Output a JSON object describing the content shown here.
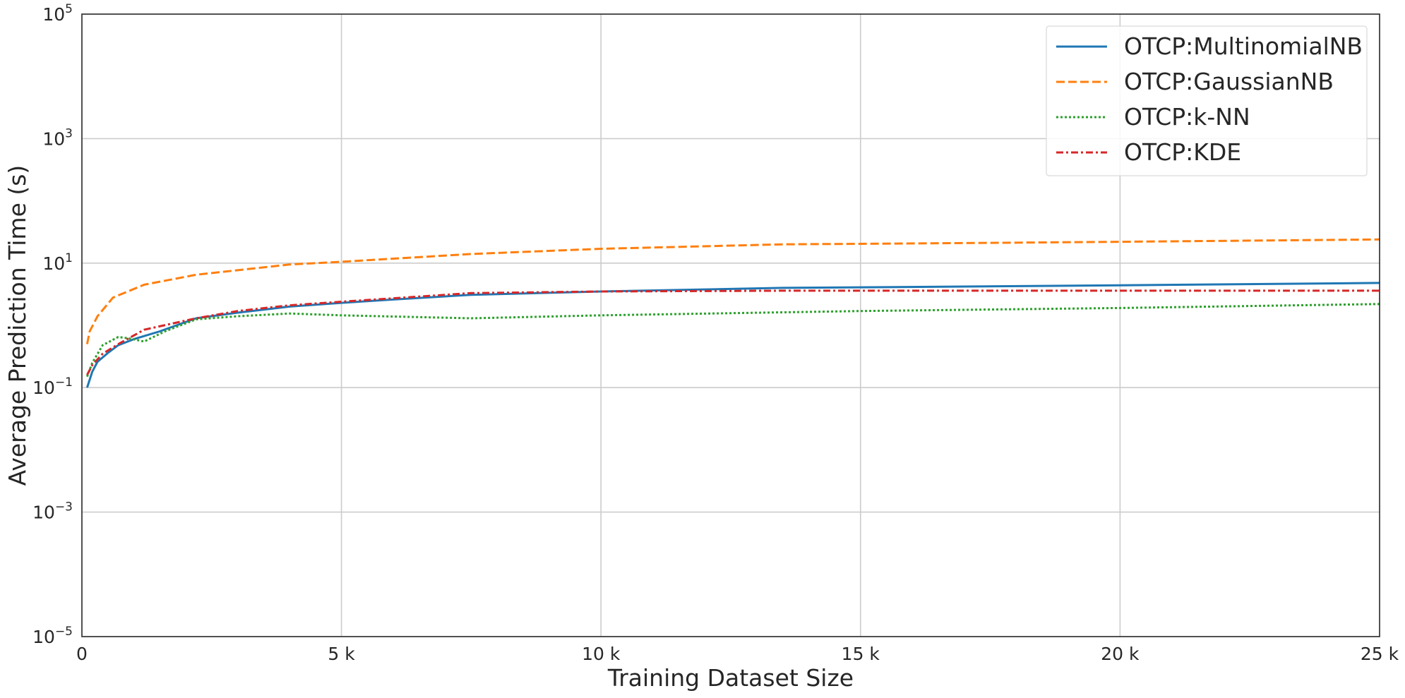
{
  "chart_data": {
    "type": "line",
    "title": "",
    "xlabel": "Training Dataset Size",
    "ylabel": "Average Prediction Time (s)",
    "xlim": [
      0,
      25000
    ],
    "ylim": [
      1e-05,
      100000
    ],
    "yscale": "log",
    "grid": true,
    "legend_position": "top-right",
    "x_ticks": [
      {
        "value": 0,
        "label": "0"
      },
      {
        "value": 5000,
        "label": "5 k"
      },
      {
        "value": 10000,
        "label": "10 k"
      },
      {
        "value": 15000,
        "label": "15 k"
      },
      {
        "value": 20000,
        "label": "20 k"
      },
      {
        "value": 25000,
        "label": "25 k"
      }
    ],
    "y_ticks": [
      {
        "value": 1e-05,
        "base": "10",
        "exp": "−5"
      },
      {
        "value": 0.001,
        "base": "10",
        "exp": "−3"
      },
      {
        "value": 0.1,
        "base": "10",
        "exp": "−1"
      },
      {
        "value": 10,
        "base": "10",
        "exp": "1"
      },
      {
        "value": 1000,
        "base": "10",
        "exp": "3"
      },
      {
        "value": 100000,
        "base": "10",
        "exp": "5"
      }
    ],
    "series": [
      {
        "name": "OTCP:MultinomialNB",
        "color": "#1f77b4",
        "dash": "solid",
        "x": [
          100,
          200,
          300,
          500,
          700,
          1000,
          1500,
          2200,
          3000,
          4000,
          5000,
          6000,
          7500,
          10000,
          13500,
          17000,
          20000,
          25000
        ],
        "y": [
          0.1,
          0.18,
          0.26,
          0.36,
          0.48,
          0.6,
          0.8,
          1.3,
          1.6,
          2.0,
          2.3,
          2.6,
          3.1,
          3.5,
          4.0,
          4.2,
          4.4,
          4.8
        ]
      },
      {
        "name": "OTCP:GaussianNB",
        "color": "#ff7f0e",
        "dash": "dashed",
        "x": [
          100,
          150,
          300,
          600,
          1200,
          2200,
          4000,
          5000,
          7500,
          10000,
          13500,
          17000,
          20000,
          25000
        ],
        "y": [
          0.5,
          0.8,
          1.4,
          2.8,
          4.5,
          6.5,
          9.5,
          10.5,
          14,
          17,
          20,
          21,
          22,
          24
        ]
      },
      {
        "name": "OTCP:k-NN",
        "color": "#2ca02c",
        "dash": "dotted",
        "x": [
          100,
          200,
          400,
          700,
          900,
          1200,
          1600,
          2200,
          3000,
          4000,
          5000,
          7500,
          10000,
          15000,
          20000,
          25000
        ],
        "y": [
          0.15,
          0.25,
          0.48,
          0.65,
          0.62,
          0.55,
          0.8,
          1.25,
          1.4,
          1.55,
          1.45,
          1.3,
          1.45,
          1.7,
          1.9,
          2.2
        ]
      },
      {
        "name": "OTCP:KDE",
        "color": "#d62728",
        "dash": "dashdot",
        "x": [
          100,
          200,
          400,
          700,
          1200,
          2200,
          3000,
          4000,
          5000,
          7500,
          10000,
          13500,
          17000,
          20000,
          25000
        ],
        "y": [
          0.16,
          0.23,
          0.35,
          0.5,
          0.85,
          1.3,
          1.7,
          2.1,
          2.4,
          3.3,
          3.5,
          3.6,
          3.6,
          3.6,
          3.6
        ]
      }
    ]
  }
}
